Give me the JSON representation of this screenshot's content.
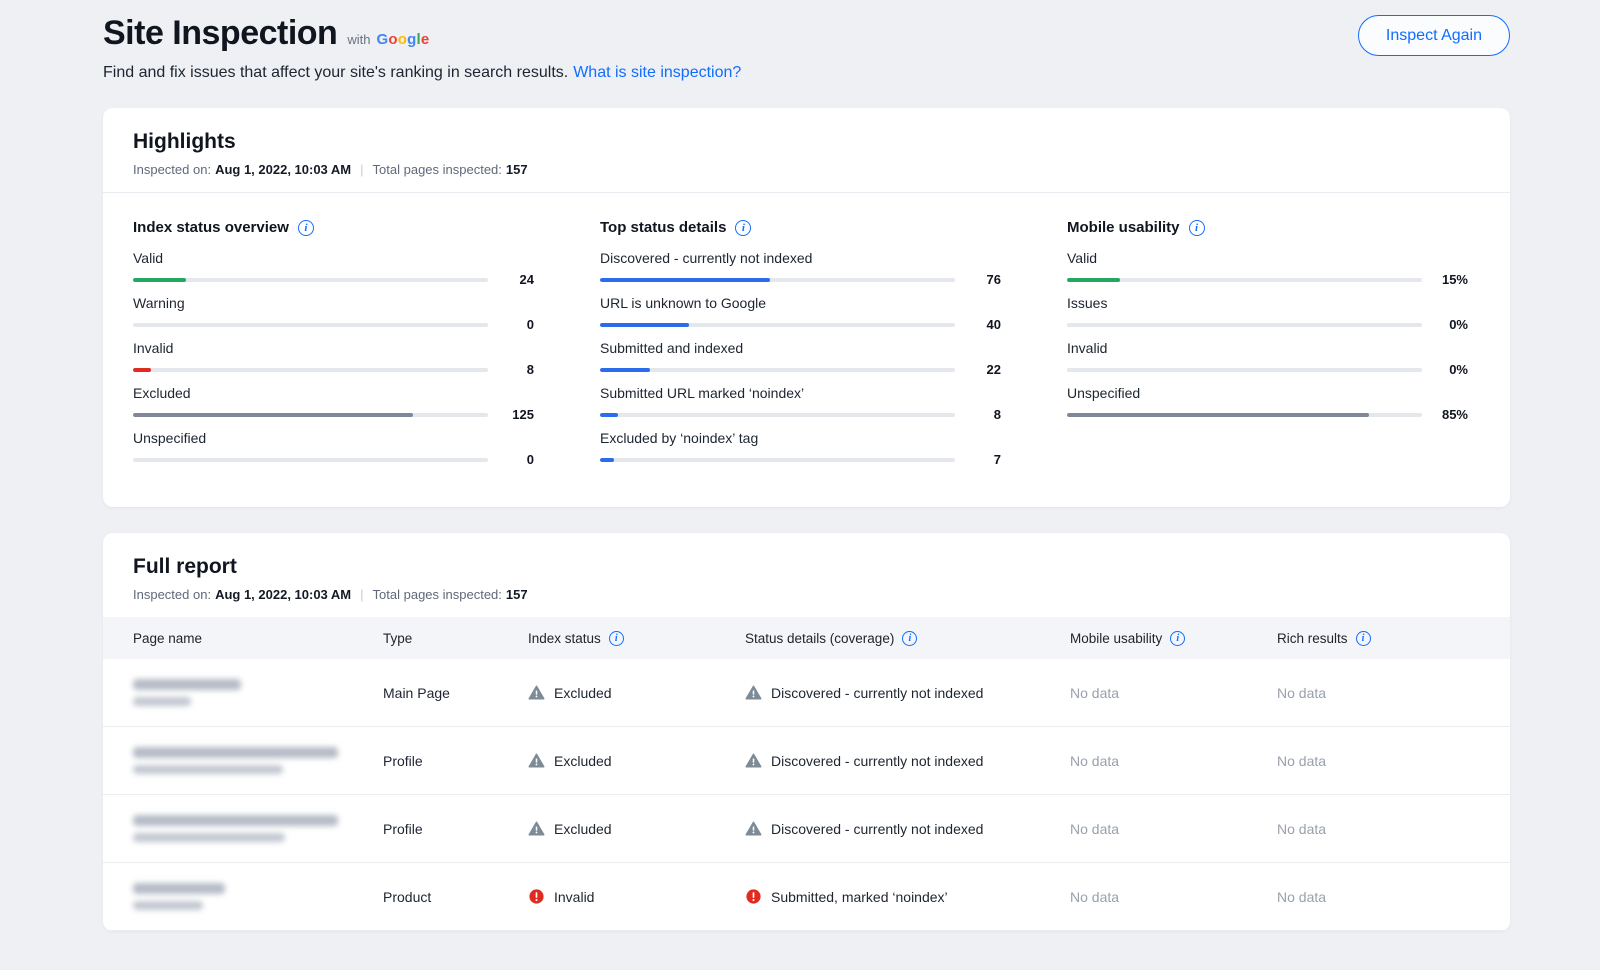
{
  "page": {
    "title": "Site Inspection",
    "with_label": "with",
    "google": {
      "letters": [
        "G",
        "o",
        "o",
        "g",
        "l",
        "e"
      ],
      "colors": [
        "#4285F4",
        "#EA4335",
        "#FBBC05",
        "#4285F4",
        "#34A853",
        "#EA4335"
      ]
    },
    "subtitle": "Find and fix issues that affect your site's ranking in search results.",
    "subtitle_link": "What is site inspection?",
    "inspect_again_label": "Inspect Again"
  },
  "highlights": {
    "title": "Highlights",
    "inspected_on_label": "Inspected on:",
    "inspected_on_value": "Aug 1, 2022, 10:03 AM",
    "separator": "|",
    "total_label": "Total pages inspected:",
    "total_value": "157",
    "sections": [
      {
        "title": "Index status overview",
        "rows": [
          {
            "label": "Valid",
            "value": "24",
            "pct": 15,
            "color": "#22a861"
          },
          {
            "label": "Warning",
            "value": "0",
            "pct": 0,
            "color": "#ffb400"
          },
          {
            "label": "Invalid",
            "value": "8",
            "pct": 5,
            "color": "#e02b20"
          },
          {
            "label": "Excluded",
            "value": "125",
            "pct": 79,
            "color": "#81879b"
          },
          {
            "label": "Unspecified",
            "value": "0",
            "pct": 0,
            "color": "#81879b"
          }
        ]
      },
      {
        "title": "Top status details",
        "rows": [
          {
            "label": "Discovered - currently not indexed",
            "value": "76",
            "pct": 48,
            "color": "#2a6ceb"
          },
          {
            "label": "URL is unknown to Google",
            "value": "40",
            "pct": 25,
            "color": "#2a6ceb"
          },
          {
            "label": "Submitted and indexed",
            "value": "22",
            "pct": 14,
            "color": "#2a6ceb"
          },
          {
            "label": "Submitted URL marked ‘noindex’",
            "value": "8",
            "pct": 5,
            "color": "#2a6ceb"
          },
          {
            "label": "Excluded by ‘noindex’ tag",
            "value": "7",
            "pct": 4,
            "color": "#2a6ceb"
          }
        ]
      },
      {
        "title": "Mobile usability",
        "rows": [
          {
            "label": "Valid",
            "value": "15%",
            "pct": 15,
            "color": "#22a861"
          },
          {
            "label": "Issues",
            "value": "0%",
            "pct": 0,
            "color": "#ffb400"
          },
          {
            "label": "Invalid",
            "value": "0%",
            "pct": 0,
            "color": "#e02b20"
          },
          {
            "label": "Unspecified",
            "value": "85%",
            "pct": 85,
            "color": "#81879b"
          }
        ]
      }
    ]
  },
  "report": {
    "title": "Full report",
    "inspected_on_label": "Inspected on:",
    "inspected_on_value": "Aug 1, 2022, 10:03 AM",
    "separator": "|",
    "total_label": "Total pages inspected:",
    "total_value": "157",
    "columns": {
      "page_name": "Page name",
      "type": "Type",
      "index_status": "Index status",
      "status_details": "Status details (coverage)",
      "mobile_usability": "Mobile usability",
      "rich_results": "Rich results"
    },
    "rows": [
      {
        "type": "Main Page",
        "index_status": "Excluded",
        "index_severity": "warning",
        "status_details": "Discovered - currently not indexed",
        "status_severity": "warning",
        "mobile_usability": "No data",
        "rich_results": "No data"
      },
      {
        "type": "Profile",
        "index_status": "Excluded",
        "index_severity": "warning",
        "status_details": "Discovered - currently not indexed",
        "status_severity": "warning",
        "mobile_usability": "No data",
        "rich_results": "No data"
      },
      {
        "type": "Profile",
        "index_status": "Excluded",
        "index_severity": "warning",
        "status_details": "Discovered - currently not indexed",
        "status_severity": "warning",
        "mobile_usability": "No data",
        "rich_results": "No data"
      },
      {
        "type": "Product",
        "index_status": "Invalid",
        "index_severity": "error",
        "status_details": "Submitted, marked ‘noindex’",
        "status_severity": "error",
        "mobile_usability": "No data",
        "rich_results": "No data"
      }
    ]
  }
}
